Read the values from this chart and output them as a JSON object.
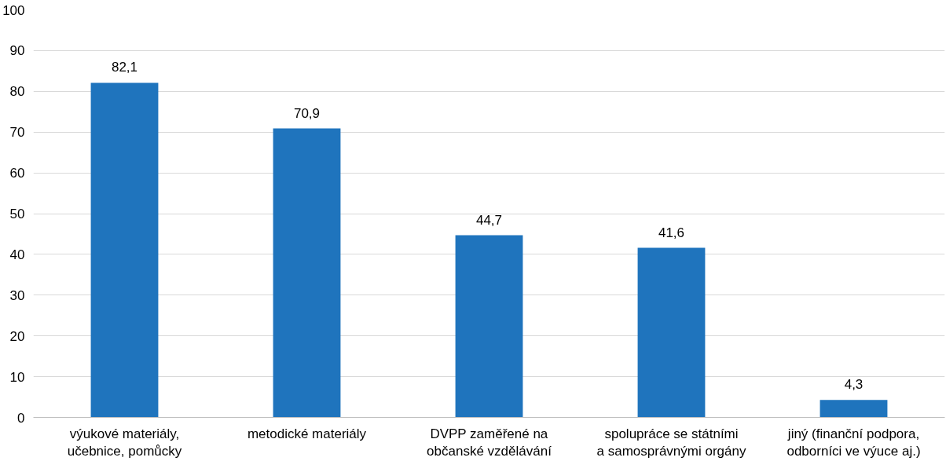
{
  "chart_data": {
    "type": "bar",
    "categories": [
      "výukové materiály,\nučebnice, pomůcky",
      "metodické materiály",
      "DVPP zaměřené na\nobčanské vzdělávání",
      "spolupráce se státními\na samosprávnými orgány",
      "jiný (finanční podpora,\nodborníci ve výuce aj.)"
    ],
    "values": [
      82.1,
      70.9,
      44.7,
      41.6,
      4.3
    ],
    "color": "#1f74bd",
    "ylim": [
      0,
      100
    ],
    "yticks": [
      0,
      10,
      20,
      30,
      40,
      50,
      60,
      70,
      80,
      90,
      100
    ],
    "value_labels": [
      "82,1",
      "70,9",
      "44,7",
      "41,6",
      "4,3"
    ],
    "grid": "y"
  }
}
